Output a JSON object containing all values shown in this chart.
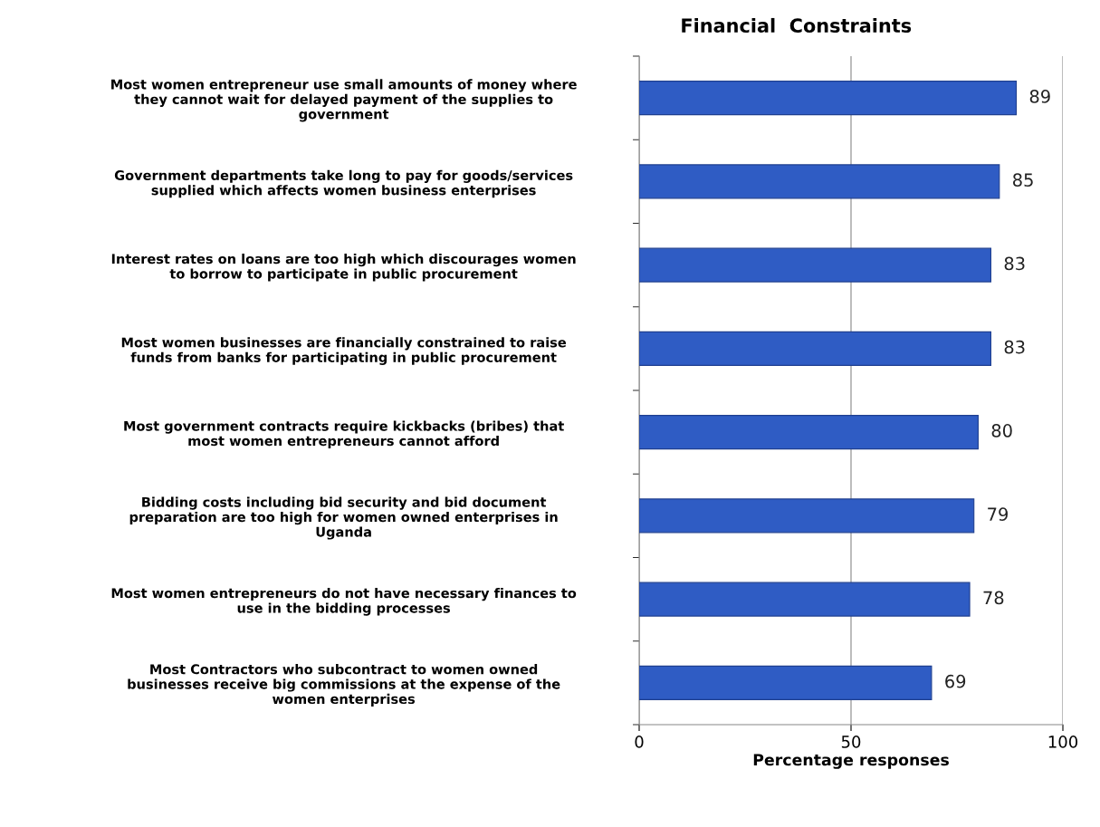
{
  "chart_data": {
    "type": "bar",
    "orientation": "horizontal",
    "title": "Financial  Constraints",
    "xlabel": "Percentage responses",
    "categories": [
      "Most women entrepreneur use small amounts of money where\nthey cannot wait for delayed payment of the supplies to\ngovernment",
      "Government departments take long to pay for goods/services\nsupplied which affects women business enterprises",
      "Interest rates on loans are too high which discourages women\nto borrow to participate in public procurement",
      "Most women businesses are financially constrained to raise\nfunds from banks for participating in public procurement",
      "Most government contracts require kickbacks (bribes) that\nmost women entrepreneurs cannot afford",
      "Bidding costs including bid security and bid document\npreparation are too high for women owned enterprises in\nUganda",
      "Most women entrepreneurs do not have necessary finances to\nuse in the bidding processes",
      "Most Contractors who subcontract to women owned\nbusinesses receive big commissions at the expense of the\nwomen enterprises"
    ],
    "values": [
      89,
      85,
      83,
      83,
      80,
      79,
      78,
      69
    ],
    "color": "#2f5cc4",
    "xlim": [
      0,
      100
    ],
    "xticks": [
      0,
      50,
      100
    ],
    "grid": "x",
    "data_labels": true
  }
}
